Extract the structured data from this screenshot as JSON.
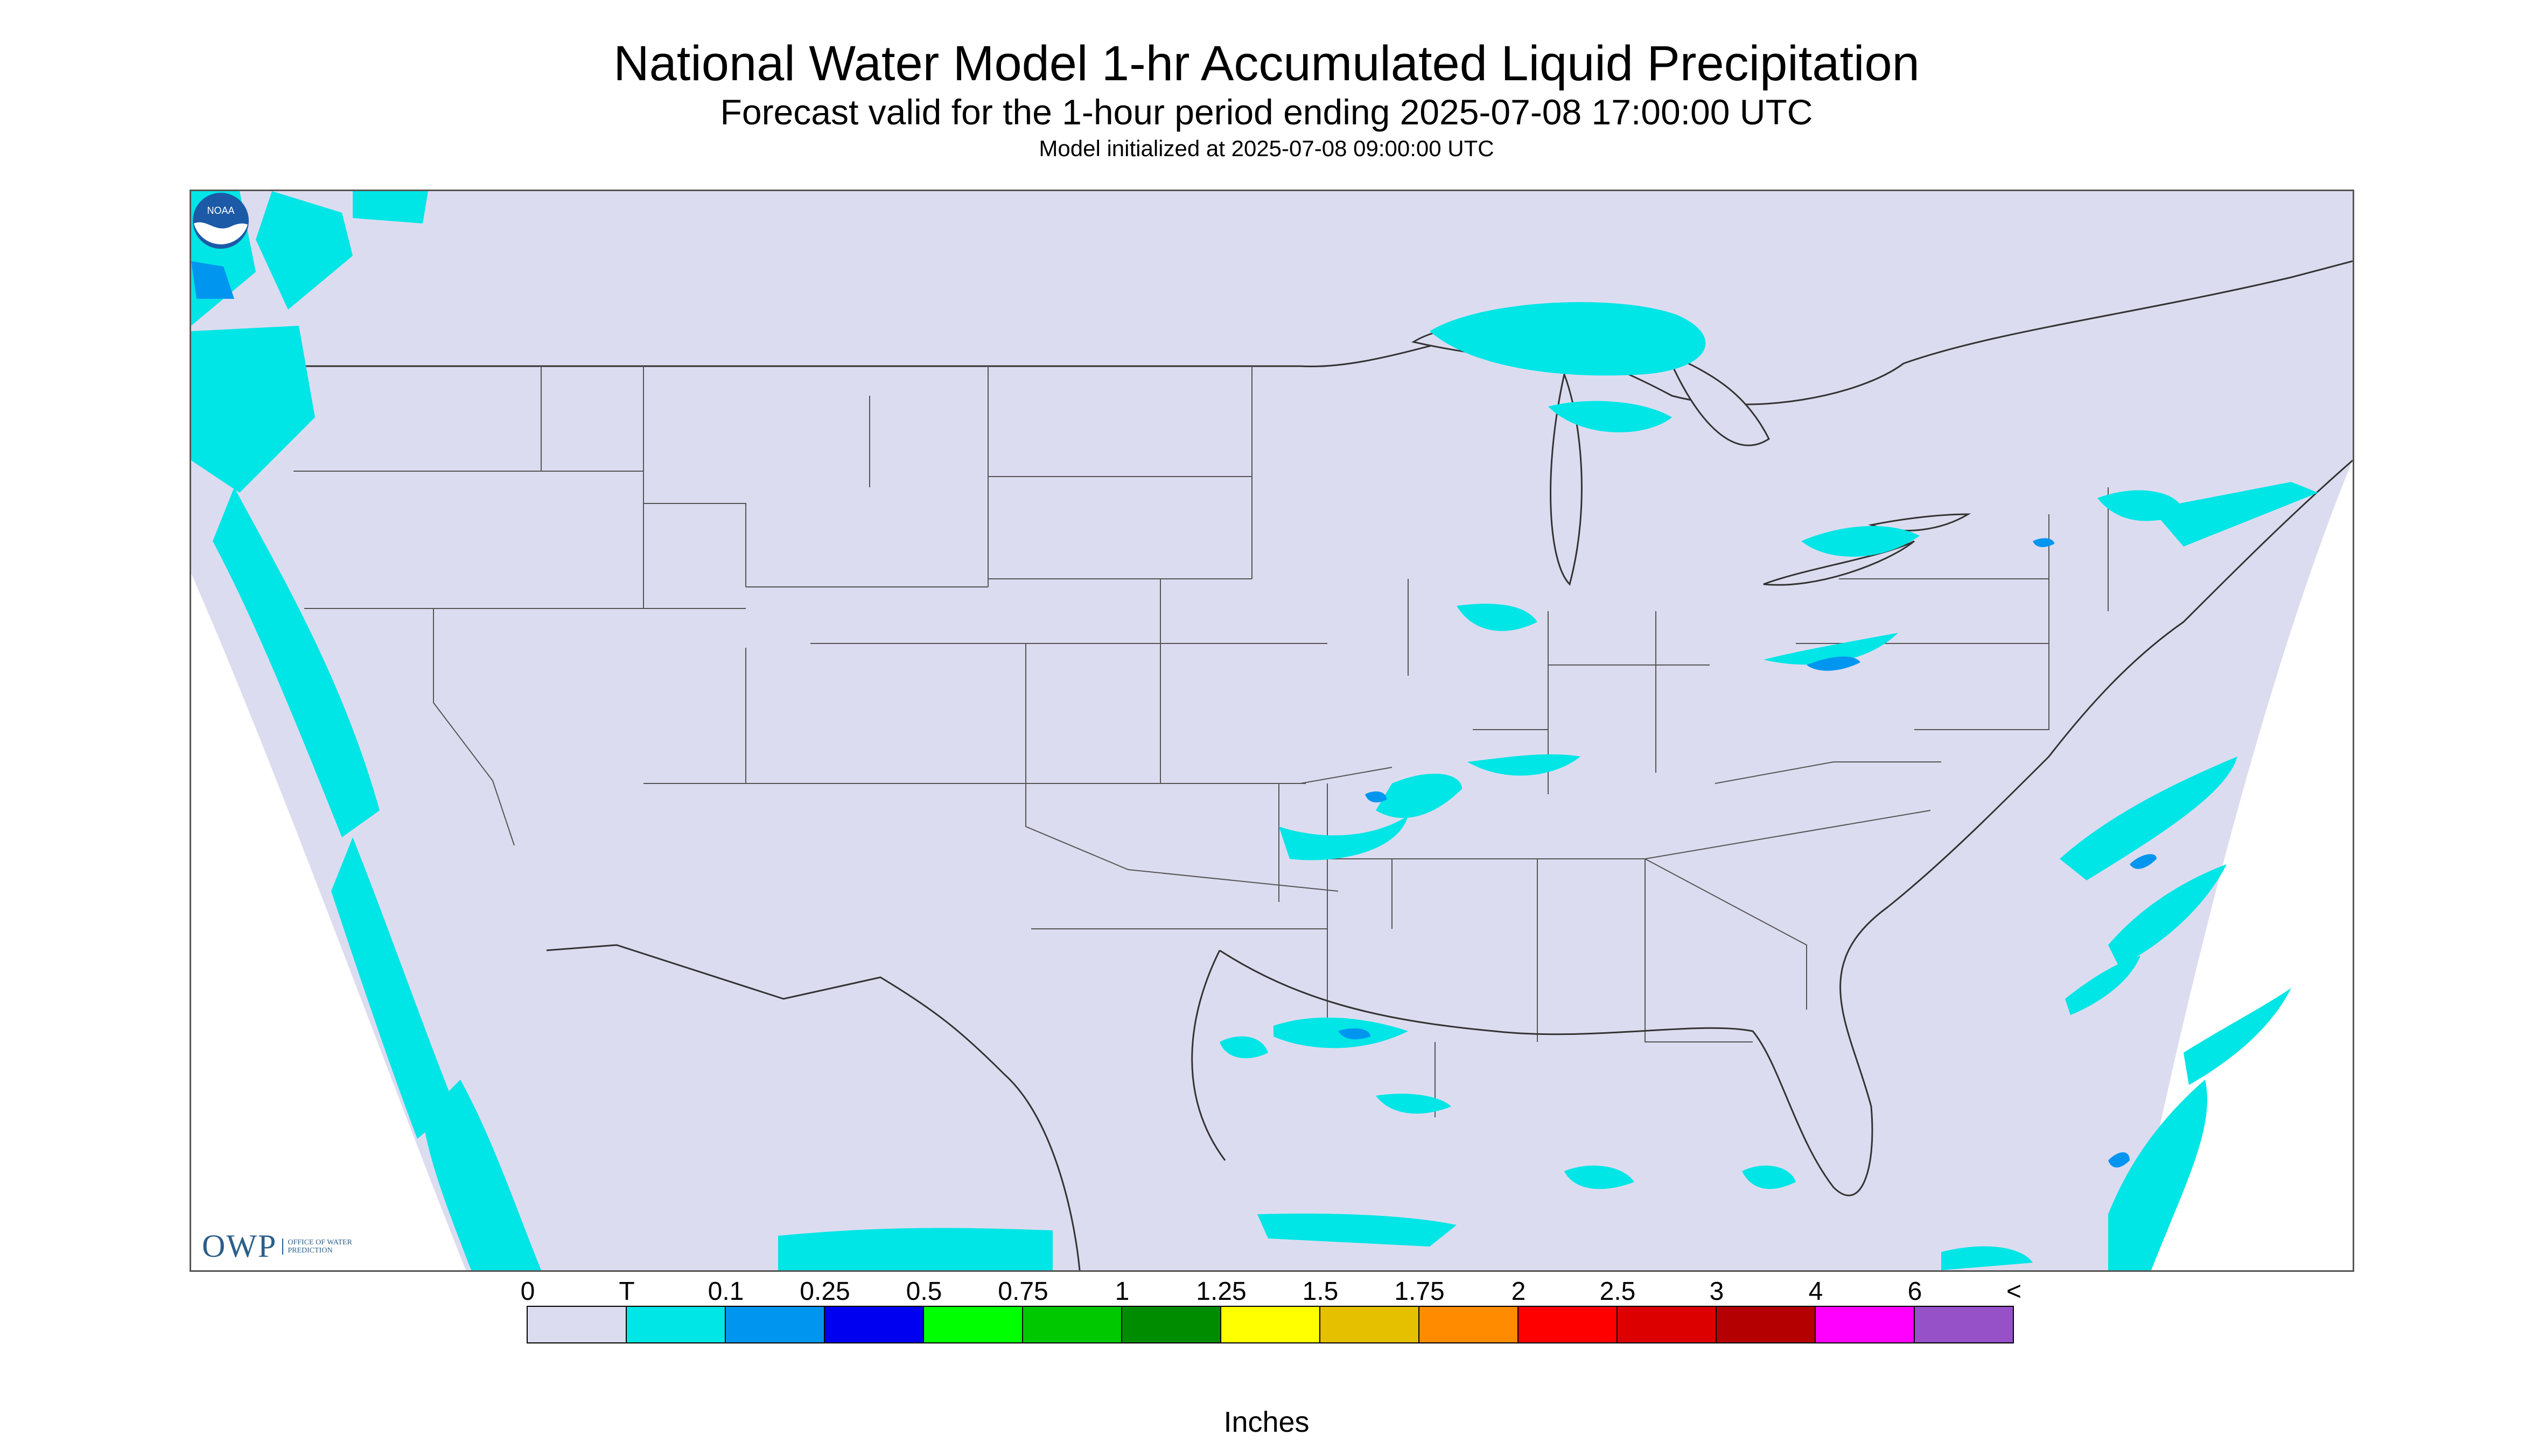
{
  "header": {
    "title": "National Water Model 1-hr Accumulated Liquid Precipitation",
    "subtitle": "Forecast valid for the 1-hour period ending 2025-07-08 17:00:00 UTC",
    "init": "Model initialized at 2025-07-08 09:00:00 UTC"
  },
  "logos": {
    "owp": "OWP",
    "owp_sub": "OFFICE OF WATER PREDICTION",
    "noaa": "NOAA"
  },
  "legend": {
    "labels": [
      "0",
      "T",
      "0.1",
      "0.25",
      "0.5",
      "0.75",
      "1",
      "1.25",
      "1.5",
      "1.75",
      "2",
      "2.5",
      "3",
      "4",
      "6",
      "<"
    ],
    "colors": [
      "#dcdcf0",
      "#00e5e5",
      "#0096f0",
      "#0000f0",
      "#00ff00",
      "#00c800",
      "#008c00",
      "#ffff00",
      "#e5c000",
      "#ff8c00",
      "#ff0000",
      "#dc0000",
      "#b40000",
      "#ff00ff",
      "#9650c8"
    ],
    "units": "Inches"
  },
  "colors": {
    "domain": "#dcdcf0",
    "trace": "#00e5e5",
    "light": "#0096f0",
    "border": "#555555"
  }
}
